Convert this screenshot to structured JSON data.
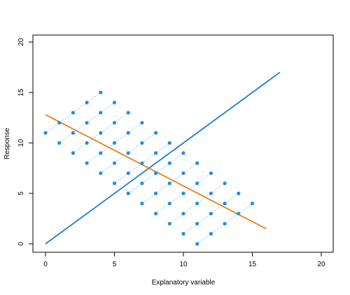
{
  "chart_data": {
    "type": "scatter",
    "title": "",
    "xlabel": "Explanatory variable",
    "ylabel": "Response",
    "xlim": [
      0,
      20
    ],
    "ylim": [
      0,
      20
    ],
    "x_ticks": [
      0,
      5,
      10,
      15,
      20
    ],
    "y_ticks": [
      0,
      5,
      10,
      15,
      20
    ],
    "grid": false,
    "colors": {
      "points": "#1f8fe0",
      "pair_links": "#1f8fe0",
      "line_identity": "#1a7fd0",
      "line_fit": "#e8801a"
    },
    "points": [
      [
        0,
        11
      ],
      [
        1,
        12
      ],
      [
        2,
        13
      ],
      [
        3,
        14
      ],
      [
        4,
        15
      ],
      [
        1,
        10
      ],
      [
        2,
        11
      ],
      [
        3,
        12
      ],
      [
        4,
        13
      ],
      [
        5,
        14
      ],
      [
        2,
        9
      ],
      [
        3,
        10
      ],
      [
        4,
        11
      ],
      [
        5,
        12
      ],
      [
        6,
        13
      ],
      [
        3,
        8
      ],
      [
        4,
        9
      ],
      [
        5,
        10
      ],
      [
        6,
        11
      ],
      [
        7,
        12
      ],
      [
        4,
        7
      ],
      [
        5,
        8
      ],
      [
        6,
        9
      ],
      [
        7,
        10
      ],
      [
        8,
        11
      ],
      [
        5,
        6
      ],
      [
        6,
        7
      ],
      [
        7,
        8
      ],
      [
        8,
        9
      ],
      [
        9,
        10
      ],
      [
        6,
        5
      ],
      [
        7,
        6
      ],
      [
        8,
        7
      ],
      [
        9,
        8
      ],
      [
        10,
        9
      ],
      [
        7,
        4
      ],
      [
        8,
        5
      ],
      [
        9,
        6
      ],
      [
        10,
        7
      ],
      [
        11,
        8
      ],
      [
        8,
        3
      ],
      [
        9,
        4
      ],
      [
        10,
        5
      ],
      [
        11,
        6
      ],
      [
        12,
        7
      ],
      [
        9,
        2
      ],
      [
        10,
        3
      ],
      [
        11,
        4
      ],
      [
        12,
        5
      ],
      [
        13,
        6
      ],
      [
        10,
        1
      ],
      [
        11,
        2
      ],
      [
        12,
        3
      ],
      [
        13,
        4
      ],
      [
        14,
        5
      ],
      [
        11,
        0
      ],
      [
        12,
        1
      ],
      [
        13,
        2
      ],
      [
        14,
        3
      ],
      [
        15,
        4
      ]
    ],
    "lines": [
      {
        "kind": "identity",
        "from": [
          0,
          0
        ],
        "to": [
          17,
          17
        ]
      },
      {
        "kind": "fit",
        "from": [
          0,
          12.8
        ],
        "to": [
          16,
          1.5
        ]
      }
    ]
  }
}
